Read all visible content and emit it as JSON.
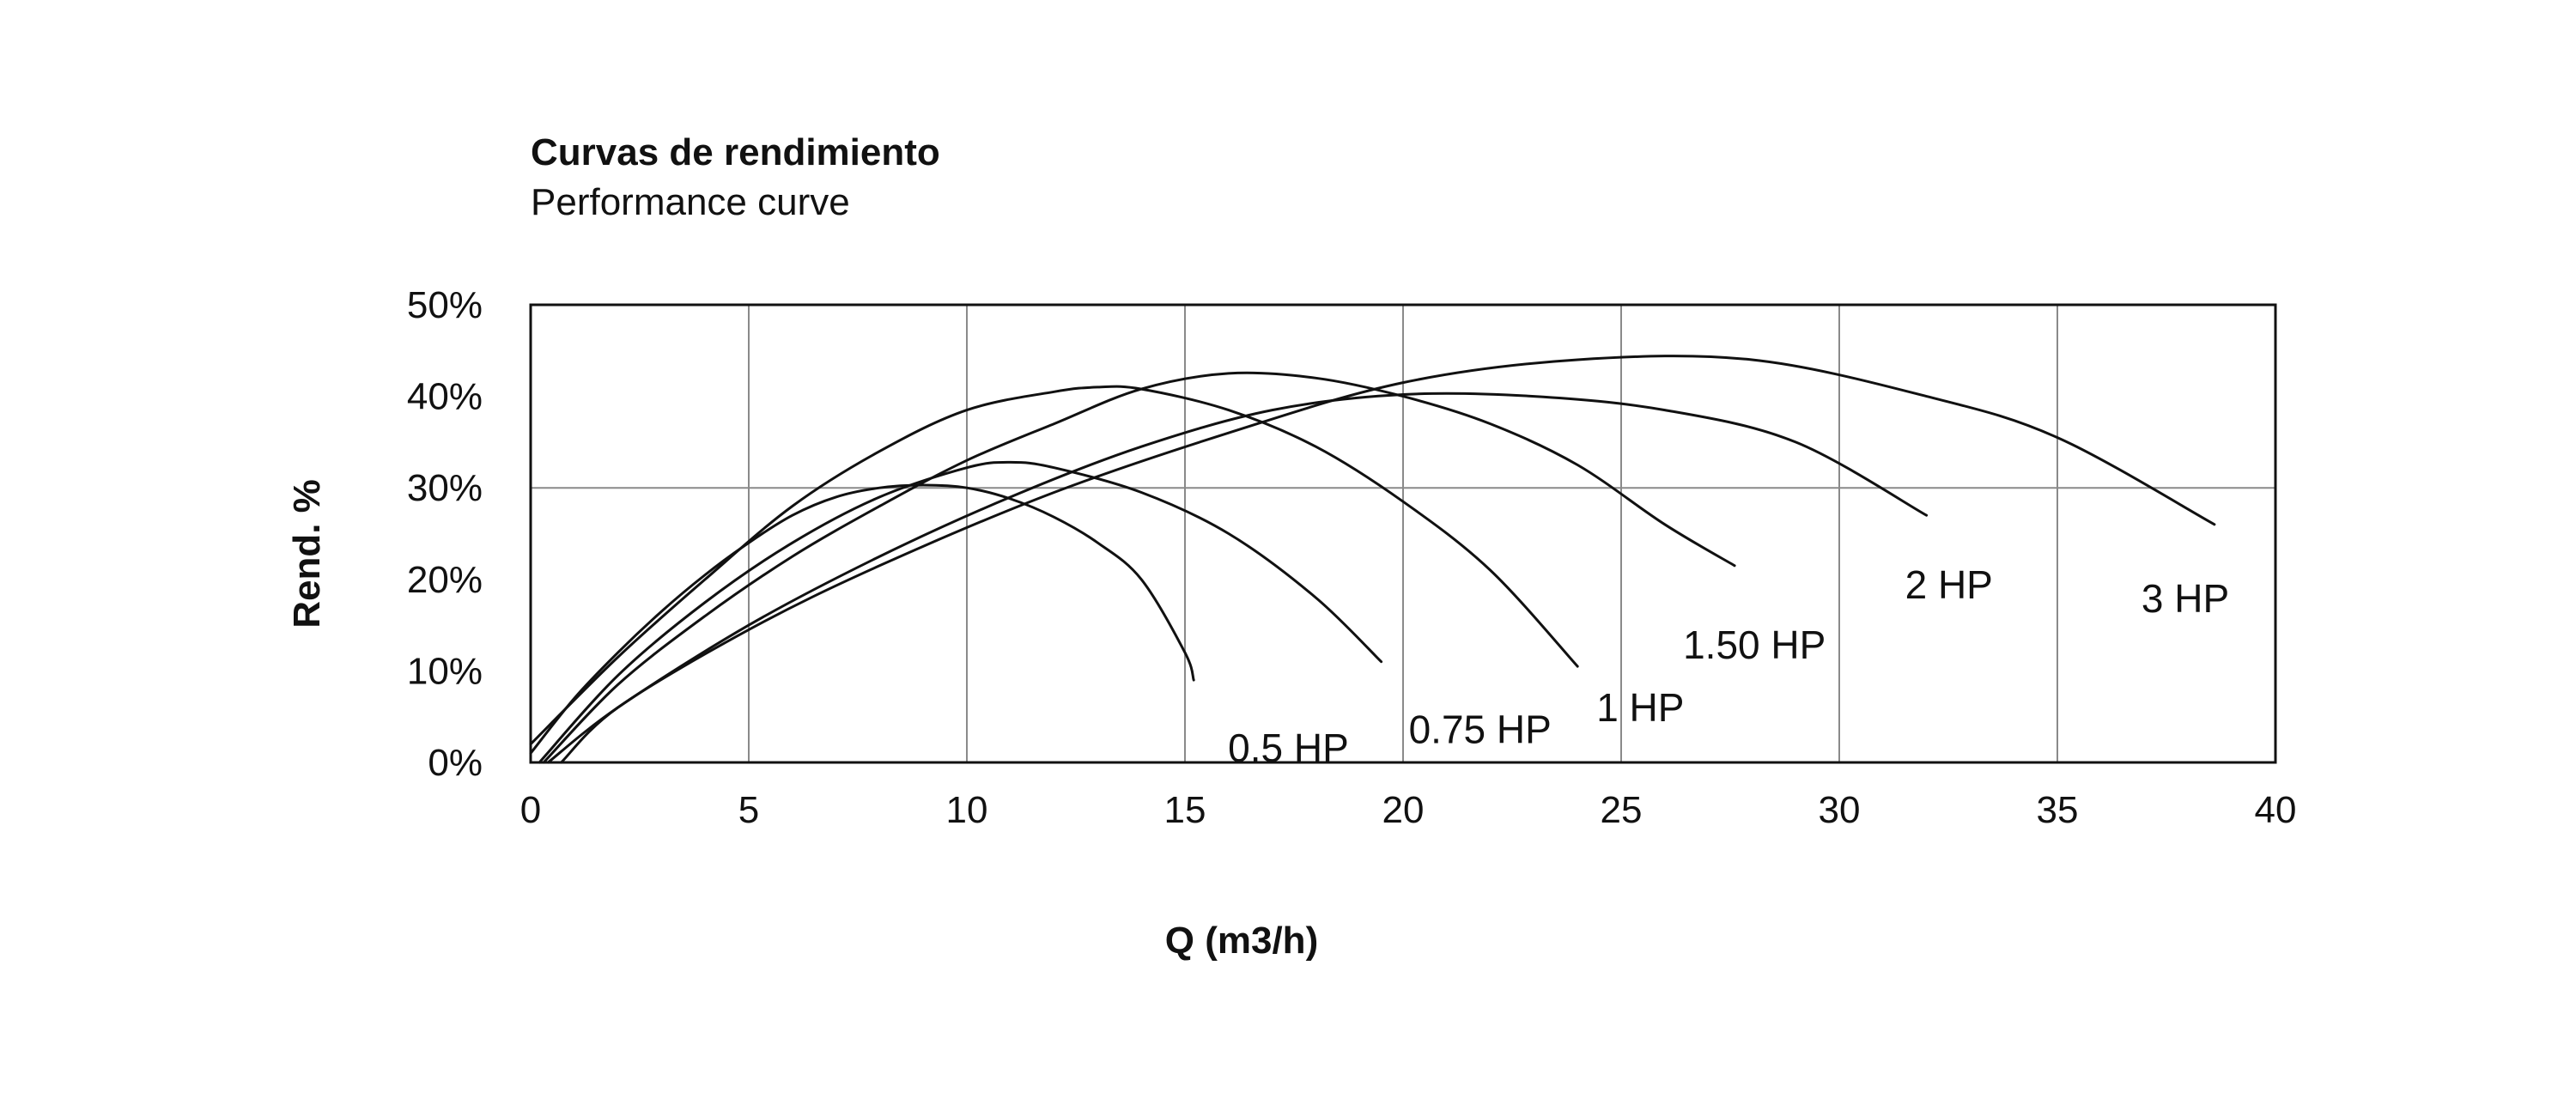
{
  "chart_data": {
    "type": "line",
    "title": "Curvas de rendimiento",
    "subtitle": "Performance curve",
    "xlabel": "Q (m3/h)",
    "ylabel": "Rend. %",
    "xlim": [
      0,
      40
    ],
    "ylim": [
      0,
      50
    ],
    "xticks": [
      "0",
      "5",
      "10",
      "15",
      "20",
      "25",
      "30",
      "35",
      "40"
    ],
    "yticks": [
      "0%",
      "10%",
      "20%",
      "30%",
      "40%",
      "50%"
    ],
    "grid": true,
    "series": [
      {
        "name": "0.5 HP",
        "x": [
          0,
          1,
          2,
          3,
          4,
          5,
          6,
          7,
          8,
          9,
          10,
          11,
          12,
          13,
          14,
          15,
          15.2
        ],
        "y": [
          1,
          7,
          12,
          16.5,
          20.5,
          24,
          27,
          29,
          30,
          30.3,
          30,
          28.8,
          26.8,
          24,
          20,
          12,
          9
        ]
      },
      {
        "name": "0.75 HP",
        "x": [
          0.2,
          2,
          4,
          6,
          8,
          10,
          11,
          12,
          14,
          16,
          18,
          19.5
        ],
        "y": [
          0,
          9.5,
          17.5,
          24,
          29,
          32.2,
          32.8,
          32.2,
          29.5,
          25,
          18,
          11
        ]
      },
      {
        "name": "1 HP",
        "x": [
          0,
          2,
          4,
          6,
          8,
          10,
          12,
          13,
          14,
          16,
          18,
          20,
          22,
          24
        ],
        "y": [
          2,
          11.5,
          20,
          28,
          34,
          38.5,
          40.5,
          41,
          40.8,
          38.5,
          34.5,
          28.5,
          21,
          10.5
        ]
      },
      {
        "name": "1.50 HP",
        "x": [
          0.3,
          2,
          4,
          6,
          8,
          10,
          12,
          14,
          16,
          18,
          20,
          22,
          24,
          26,
          27.6
        ],
        "y": [
          0,
          8.5,
          16,
          22.5,
          28,
          33,
          37,
          40.8,
          42.5,
          42,
          40,
          37,
          32.5,
          26,
          21.5
        ]
      },
      {
        "name": "2 HP",
        "x": [
          0.4,
          2,
          5,
          8,
          11,
          14,
          17,
          20,
          23,
          26,
          29,
          32
        ],
        "y": [
          0,
          6,
          15,
          22.5,
          29,
          34.5,
          38.5,
          40.2,
          40,
          38.5,
          35,
          27
        ]
      },
      {
        "name": "3 HP",
        "x": [
          0.7,
          2,
          5,
          8,
          12,
          16,
          20,
          24,
          28,
          32,
          35,
          38.6
        ],
        "y": [
          0,
          6,
          14.5,
          21.5,
          29.5,
          36,
          41.5,
          44,
          44,
          40,
          35.5,
          26
        ]
      }
    ],
    "legend": "inline labels near curve ends"
  }
}
